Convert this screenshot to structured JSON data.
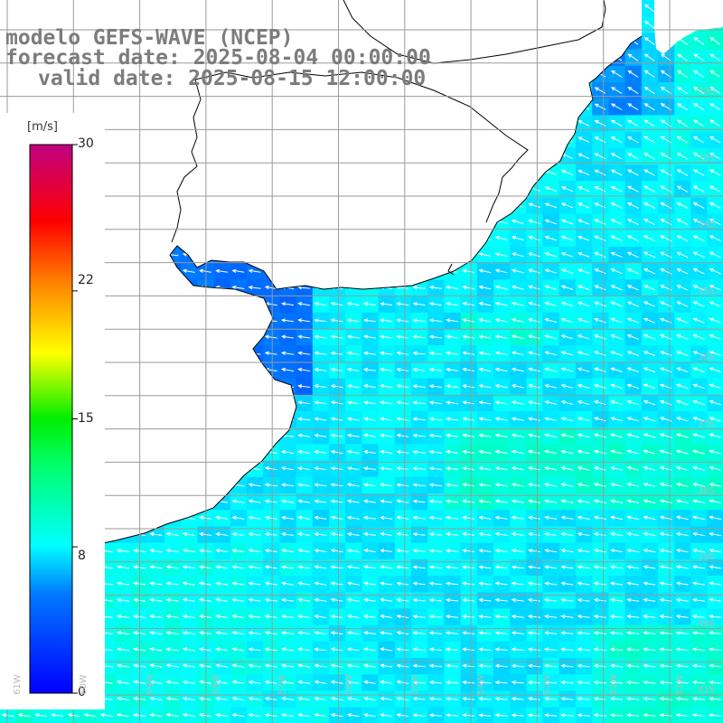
{
  "header": {
    "model_line": "modelo GEFS-WAVE (NCEP)",
    "forecast_line": "forecast date: 2025-08-04 00:00:00",
    "valid_line": "valid date: 2025-08-15 12:00:00"
  },
  "colorbar": {
    "unit": "[m/s]",
    "min": 0,
    "max": 30,
    "tick_labels": [
      "30",
      "22",
      "15",
      "8",
      "0"
    ],
    "tick_values": [
      30,
      22,
      15,
      8,
      0
    ],
    "colors": [
      "#0000ff",
      "#00aaff",
      "#00ffff",
      "#00ff00",
      "#ffff00",
      "#ff8000",
      "#ff0000",
      "#c00080"
    ]
  },
  "map": {
    "lat_labels": [
      "32S",
      "33S",
      "34S",
      "35S",
      "36S",
      "37S",
      "38S",
      "39S",
      "40S",
      "41S"
    ],
    "lon_labels": [
      "61W",
      "60W",
      "59W",
      "58W",
      "57W",
      "56W",
      "55W",
      "54W",
      "53W",
      "52W",
      "51W"
    ],
    "land_color": "#ffffff",
    "coast_color": "#000000",
    "grid_color": "#9a9a9a",
    "arrow_color": "#ffffff"
  },
  "chart_data": {
    "type": "heatmap",
    "variable": "wind speed",
    "units": "m/s",
    "approx_range": [
      4,
      12
    ]
  }
}
